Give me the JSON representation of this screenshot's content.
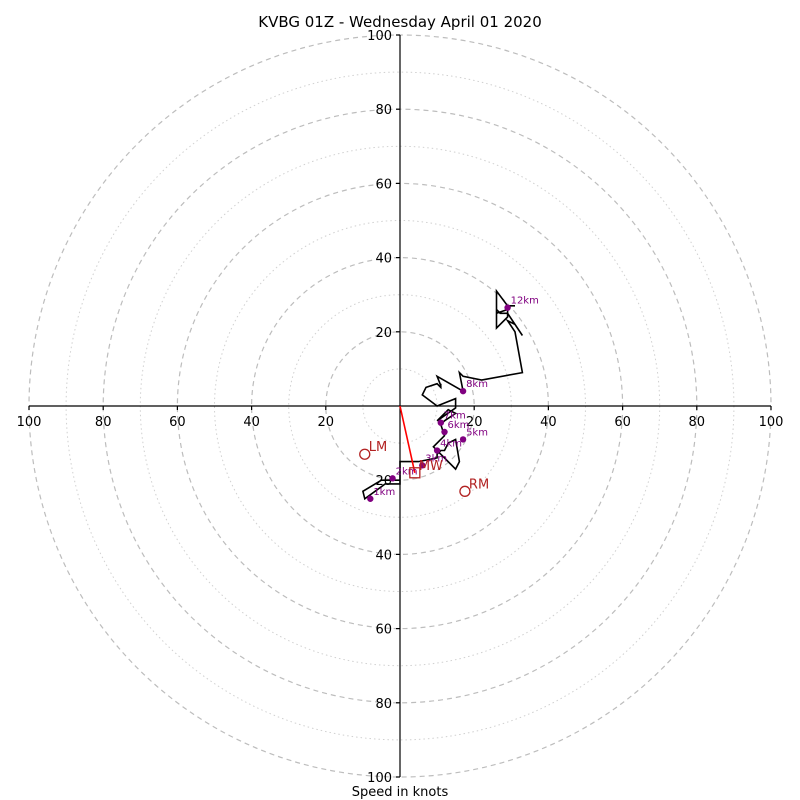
{
  "chart_data": {
    "type": "scatter",
    "title": "KVBG 01Z - Wednesday April 01 2020",
    "xlabel": "Speed in knots",
    "ylabel": "",
    "xlim": [
      -100,
      100
    ],
    "ylim": [
      -100,
      100
    ],
    "rings_major": [
      20,
      40,
      60,
      80,
      100
    ],
    "rings_minor": [
      10,
      30,
      50,
      70,
      90
    ],
    "x_tick_labels": [
      "100",
      "80",
      "60",
      "40",
      "20",
      "20",
      "40",
      "60",
      "80",
      "100"
    ],
    "y_tick_labels": [
      "100",
      "80",
      "60",
      "40",
      "20",
      "20",
      "40",
      "60",
      "80",
      "100"
    ],
    "hodograph": [
      {
        "u": 0,
        "v": -20
      },
      {
        "u": -5,
        "v": -20
      },
      {
        "u": -10,
        "v": -23
      },
      {
        "u": -9.5,
        "v": -25
      },
      {
        "u": -4,
        "v": -21
      },
      {
        "u": -1,
        "v": -21
      },
      {
        "u": 0,
        "v": -21
      },
      {
        "u": 0,
        "v": -15
      },
      {
        "u": 5,
        "v": -15
      },
      {
        "u": 10,
        "v": -14
      },
      {
        "u": 10,
        "v": -13
      },
      {
        "u": 11,
        "v": -12
      },
      {
        "u": 12,
        "v": -12
      },
      {
        "u": 13,
        "v": -10
      },
      {
        "u": 15,
        "v": -9
      },
      {
        "u": 16,
        "v": -15
      },
      {
        "u": 15,
        "v": -17
      },
      {
        "u": 9,
        "v": -11
      },
      {
        "u": 12,
        "v": -8
      },
      {
        "u": 11,
        "v": -5
      },
      {
        "u": 12,
        "v": -4
      },
      {
        "u": 15,
        "v": -2
      },
      {
        "u": 13,
        "v": -1
      },
      {
        "u": 10,
        "v": -4
      },
      {
        "u": 15,
        "v": -0.5
      },
      {
        "u": 15,
        "v": 2
      },
      {
        "u": 10,
        "v": 0
      },
      {
        "u": 6,
        "v": 3
      },
      {
        "u": 7,
        "v": 5
      },
      {
        "u": 10,
        "v": 6
      },
      {
        "u": 11,
        "v": 5
      },
      {
        "u": 11,
        "v": 5
      },
      {
        "u": 11,
        "v": 6
      },
      {
        "u": 11,
        "v": 5.5
      },
      {
        "u": 10,
        "v": 8
      },
      {
        "u": 17,
        "v": 4
      },
      {
        "u": 16,
        "v": 9
      },
      {
        "u": 17,
        "v": 8
      },
      {
        "u": 22,
        "v": 7
      },
      {
        "u": 33,
        "v": 9
      },
      {
        "u": 31,
        "v": 20
      },
      {
        "u": 29,
        "v": 23
      },
      {
        "u": 31,
        "v": 22
      },
      {
        "u": 33,
        "v": 19
      },
      {
        "u": 29,
        "v": 25
      },
      {
        "u": 27,
        "v": 25
      },
      {
        "u": 26,
        "v": 26
      },
      {
        "u": 26,
        "v": 21
      },
      {
        "u": 29,
        "v": 24
      },
      {
        "u": 29,
        "v": 26
      },
      {
        "u": 26,
        "v": 25
      },
      {
        "u": 26,
        "v": 31
      },
      {
        "u": 29,
        "v": 27
      },
      {
        "u": 31,
        "v": 27
      }
    ],
    "height_markers": [
      {
        "label": "1km",
        "u": -8,
        "v": -25
      },
      {
        "label": "2km",
        "u": -2,
        "v": -19.5
      },
      {
        "label": "3km",
        "u": 6,
        "v": -16
      },
      {
        "label": "4km",
        "u": 10,
        "v": -12
      },
      {
        "label": "5km",
        "u": 17,
        "v": -9
      },
      {
        "label": "6km",
        "u": 12,
        "v": -7
      },
      {
        "label": "7km",
        "u": 11,
        "v": -4.5
      },
      {
        "label": "8km",
        "u": 17,
        "v": 4
      },
      {
        "label": "12km",
        "u": 29,
        "v": 26.5
      }
    ],
    "storm_motion": [
      {
        "label": "LM",
        "u": -9.5,
        "v": -13,
        "marker": "circle"
      },
      {
        "label": "RM",
        "u": 17.5,
        "v": -23,
        "marker": "circle"
      },
      {
        "label": "MW",
        "u": 4,
        "v": -18,
        "marker": "square"
      }
    ],
    "shear_vector": {
      "u": 4,
      "v": -18
    },
    "colors": {
      "hodograph": "#000000",
      "height_markers": "#800080",
      "storm_motion": "#b22222",
      "shear_vector": "#ff0000",
      "rings": "#bdbdbd"
    }
  }
}
